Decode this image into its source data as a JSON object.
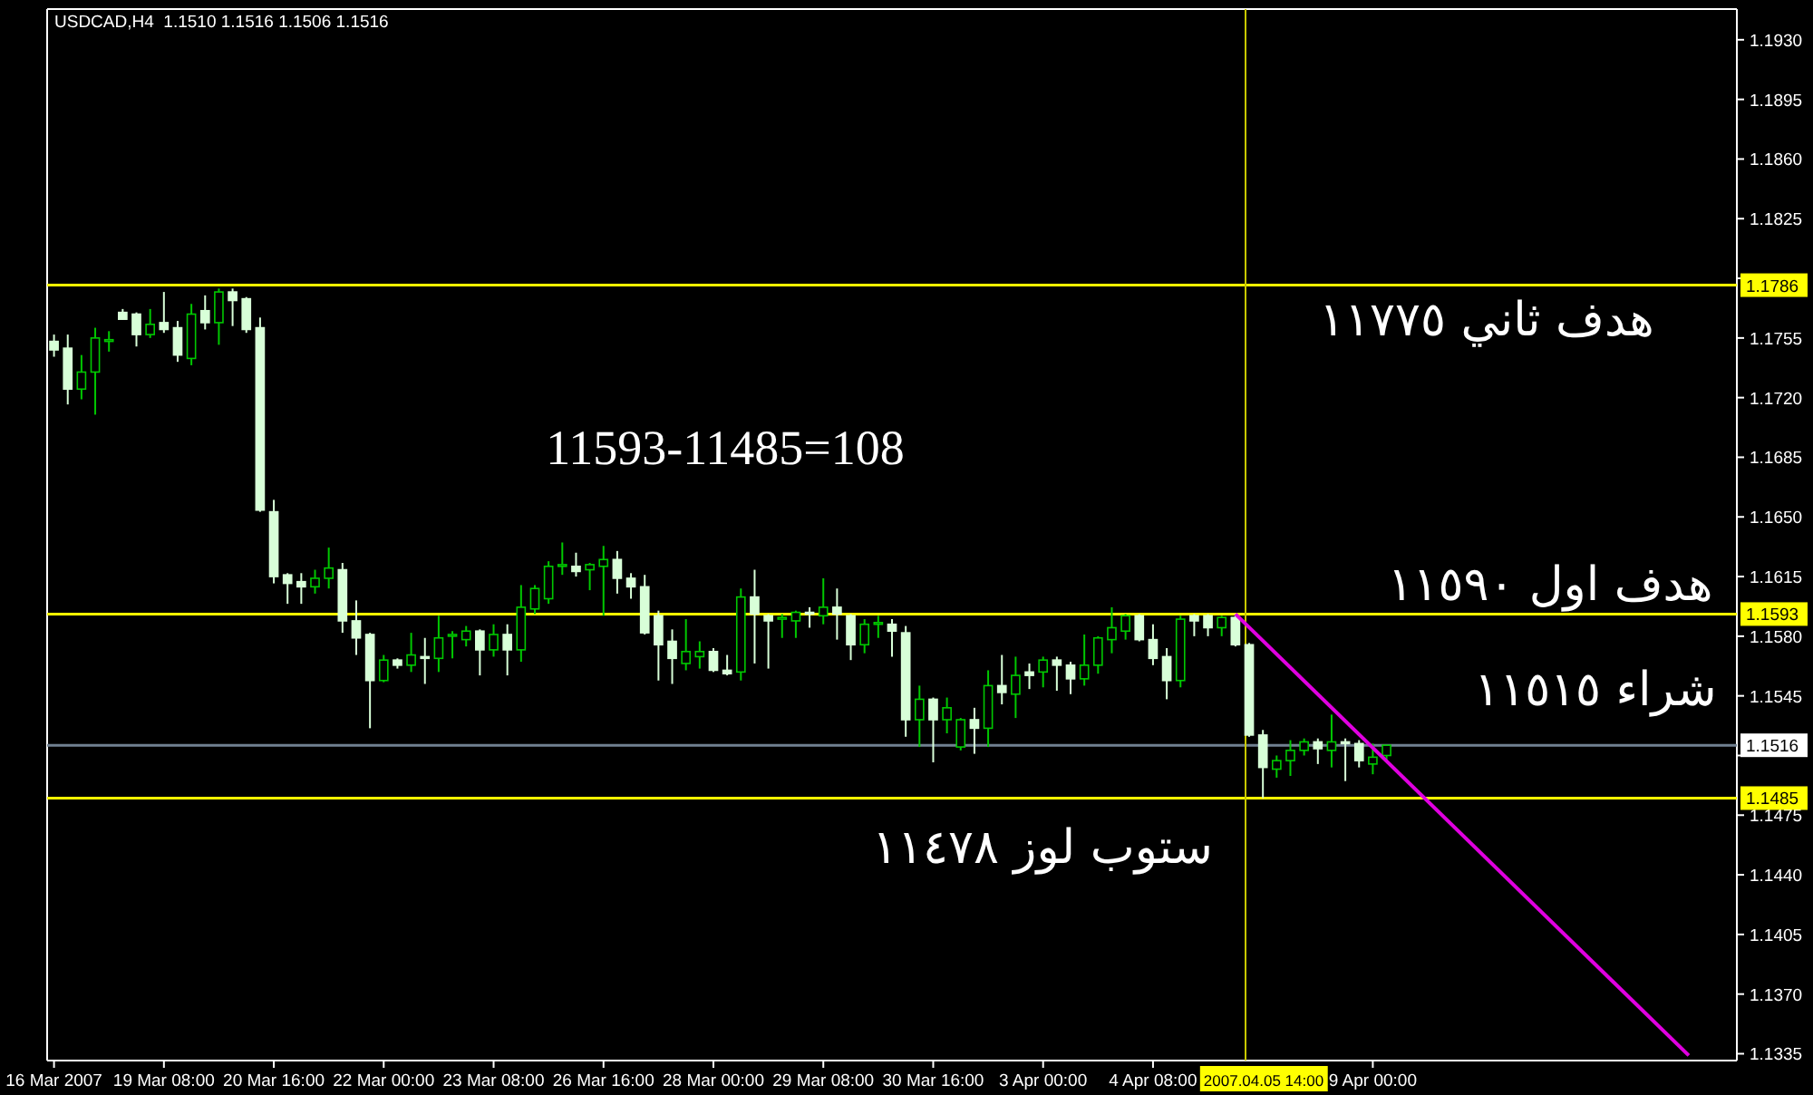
{
  "chart_data": {
    "type": "candlestick",
    "title": "USDCAD,H4  1.1510 1.1516 1.1506 1.1516",
    "categories": [
      "16 Mar 2007",
      null,
      null,
      null,
      null,
      null,
      null,
      null,
      "19 Mar 08:00",
      null,
      null,
      null,
      null,
      null,
      null,
      null,
      "20 Mar 16:00",
      null,
      null,
      null,
      null,
      null,
      null,
      null,
      "22 Mar 00:00",
      null,
      null,
      null,
      null,
      null,
      null,
      null,
      "23 Mar 08:00",
      null,
      null,
      null,
      null,
      null,
      null,
      null,
      "26 Mar 16:00",
      null,
      null,
      null,
      null,
      null,
      null,
      null,
      "28 Mar 00:00",
      null,
      null,
      null,
      null,
      null,
      null,
      null,
      "29 Mar 08:00",
      null,
      null,
      null,
      null,
      null,
      null,
      null,
      "30 Mar 16:00",
      null,
      null,
      null,
      null,
      null,
      null,
      null,
      "3 Apr 00:00",
      null,
      null,
      null,
      null,
      null,
      null,
      null,
      "4 Apr 08:00",
      null,
      null,
      null,
      null,
      null,
      null,
      null,
      null,
      null,
      null,
      null,
      null,
      null,
      null,
      null,
      "9 Apr 00:00",
      null,
      null,
      null,
      null,
      null,
      null,
      null,
      null,
      null,
      null,
      null,
      null,
      null,
      null,
      null,
      null,
      null,
      null,
      null,
      null,
      null,
      null,
      null,
      null,
      null,
      null
    ],
    "colors": [
      "#d8ffd8",
      "#d8ffd8",
      "#00c800",
      "#00c800",
      "#00c800",
      "#d8ffd8",
      "#d8ffd8",
      "#00c800",
      "#d8ffd8",
      "#d8ffd8",
      "#00c800",
      "#d8ffd8",
      "#00c800",
      "#d8ffd8",
      "#d8ffd8",
      "#d8ffd8",
      "#d8ffd8",
      "#d8ffd8",
      "#d8ffd8",
      "#00c800",
      "#00c800",
      "#d8ffd8",
      "#d8ffd8",
      "#d8ffd8",
      "#00c800",
      "#d8ffd8",
      "#00c800",
      "#d8ffd8",
      "#00c800",
      "#00c800",
      "#00c800",
      "#d8ffd8",
      "#00c800",
      "#d8ffd8",
      "#00c800",
      "#00c800",
      "#00c800",
      "#00c800",
      "#d8ffd8",
      "#00c800",
      "#00c800",
      "#d8ffd8",
      "#d8ffd8",
      "#d8ffd8",
      "#d8ffd8",
      "#d8ffd8",
      "#00c800",
      "#00c800",
      "#d8ffd8",
      "#d8ffd8",
      "#00c800",
      "#d8ffd8",
      "#d8ffd8",
      "#00c800",
      "#00c800",
      "#d8ffd8",
      "#00c800",
      "#d8ffd8",
      "#d8ffd8",
      "#00c800",
      "#00c800",
      "#d8ffd8",
      "#d8ffd8",
      "#00c800",
      "#d8ffd8",
      "#00c800",
      "#00c800",
      "#d8ffd8",
      "#00c800",
      "#d8ffd8",
      "#00c800",
      "#d8ffd8",
      "#00c800",
      "#d8ffd8",
      "#d8ffd8",
      "#00c800",
      "#00c800",
      "#00c800",
      "#00c800",
      "#d8ffd8",
      "#d8ffd8",
      "#d8ffd8",
      "#00c800",
      "#d8ffd8",
      "#d8ffd8",
      "#00c800",
      "#d8ffd8",
      "#d8ffd8",
      "#d8ffd8",
      "#00c800",
      "#00c800",
      "#00c800",
      "#d8ffd8",
      "#00c800",
      "#d8ffd8",
      "#d8ffd8",
      "#00c800",
      "#00c800",
      null,
      null,
      null,
      null,
      null,
      null,
      null,
      null,
      null,
      null,
      null,
      null,
      null,
      null,
      null,
      null,
      null,
      null,
      null,
      null,
      null,
      null,
      null,
      null,
      null
    ],
    "ohlc": [
      [
        1.1753,
        1.1757,
        1.1744,
        1.1748
      ],
      [
        1.1749,
        1.1757,
        1.1716,
        1.1725
      ],
      [
        1.1725,
        1.1745,
        1.1719,
        1.1735
      ],
      [
        1.1735,
        1.1761,
        1.171,
        1.1755
      ],
      [
        1.1753,
        1.1759,
        1.1747,
        1.1754
      ],
      [
        1.177,
        1.1772,
        1.1766,
        1.1766
      ],
      [
        1.1769,
        1.177,
        1.175,
        1.1757
      ],
      [
        1.1757,
        1.1772,
        1.1755,
        1.1763
      ],
      [
        1.1764,
        1.1782,
        1.1758,
        1.176
      ],
      [
        1.1761,
        1.1765,
        1.1741,
        1.1745
      ],
      [
        1.1743,
        1.1775,
        1.1739,
        1.1769
      ],
      [
        1.1771,
        1.178,
        1.176,
        1.1764
      ],
      [
        1.1764,
        1.1784,
        1.1751,
        1.1782
      ],
      [
        1.1782,
        1.1784,
        1.1762,
        1.1777
      ],
      [
        1.1778,
        1.1779,
        1.1758,
        1.176
      ],
      [
        1.1761,
        1.1767,
        1.1653,
        1.1654
      ],
      [
        1.1653,
        1.166,
        1.1611,
        1.1615
      ],
      [
        1.1616,
        1.1617,
        1.1599,
        1.1611
      ],
      [
        1.1612,
        1.1617,
        1.1599,
        1.1609
      ],
      [
        1.1609,
        1.1619,
        1.1605,
        1.1614
      ],
      [
        1.1614,
        1.1632,
        1.1608,
        1.162
      ],
      [
        1.1619,
        1.1623,
        1.1582,
        1.1589
      ],
      [
        1.1589,
        1.1601,
        1.1569,
        1.1579
      ],
      [
        1.1581,
        1.1582,
        1.1526,
        1.1554
      ],
      [
        1.1554,
        1.1569,
        1.1553,
        1.1566
      ],
      [
        1.1566,
        1.1567,
        1.1561,
        1.1563
      ],
      [
        1.1563,
        1.1582,
        1.1559,
        1.1569
      ],
      [
        1.1568,
        1.1579,
        1.1552,
        1.1567
      ],
      [
        1.1567,
        1.1592,
        1.1559,
        1.1579
      ],
      [
        1.158,
        1.1583,
        1.1567,
        1.1581
      ],
      [
        1.1578,
        1.1586,
        1.1574,
        1.1583
      ],
      [
        1.1583,
        1.1584,
        1.1557,
        1.1572
      ],
      [
        1.1572,
        1.1587,
        1.1568,
        1.1581
      ],
      [
        1.1581,
        1.1587,
        1.1557,
        1.1572
      ],
      [
        1.1572,
        1.161,
        1.1565,
        1.1597
      ],
      [
        1.1596,
        1.161,
        1.1593,
        1.1608
      ],
      [
        1.1602,
        1.1624,
        1.1599,
        1.1621
      ],
      [
        1.1621,
        1.1635,
        1.1616,
        1.1622
      ],
      [
        1.1621,
        1.1629,
        1.1615,
        1.1618
      ],
      [
        1.1619,
        1.1623,
        1.1607,
        1.1622
      ],
      [
        1.1621,
        1.1633,
        1.1592,
        1.1625
      ],
      [
        1.1625,
        1.163,
        1.1605,
        1.1614
      ],
      [
        1.1614,
        1.1617,
        1.1602,
        1.1609
      ],
      [
        1.1609,
        1.1616,
        1.1581,
        1.1582
      ],
      [
        1.1592,
        1.1595,
        1.1554,
        1.1575
      ],
      [
        1.1577,
        1.1584,
        1.1552,
        1.1567
      ],
      [
        1.1564,
        1.159,
        1.156,
        1.1571
      ],
      [
        1.1568,
        1.1577,
        1.1561,
        1.1571
      ],
      [
        1.1571,
        1.1573,
        1.1559,
        1.156
      ],
      [
        1.156,
        1.1569,
        1.1557,
        1.1558
      ],
      [
        1.1559,
        1.1608,
        1.1554,
        1.1603
      ],
      [
        1.1603,
        1.1619,
        1.1564,
        1.1593
      ],
      [
        1.1592,
        1.1593,
        1.1561,
        1.1589
      ],
      [
        1.159,
        1.1593,
        1.1579,
        1.1591
      ],
      [
        1.1589,
        1.1595,
        1.1579,
        1.1594
      ],
      [
        1.1594,
        1.1597,
        1.1585,
        1.1593
      ],
      [
        1.1592,
        1.1614,
        1.1587,
        1.1597
      ],
      [
        1.1597,
        1.1608,
        1.1578,
        1.1593
      ],
      [
        1.1592,
        1.1593,
        1.1566,
        1.1575
      ],
      [
        1.1575,
        1.159,
        1.157,
        1.1587
      ],
      [
        1.1587,
        1.1592,
        1.1579,
        1.1588
      ],
      [
        1.1587,
        1.159,
        1.1568,
        1.1583
      ],
      [
        1.1582,
        1.1586,
        1.1521,
        1.1531
      ],
      [
        1.1531,
        1.1551,
        1.1515,
        1.1543
      ],
      [
        1.1543,
        1.1544,
        1.1506,
        1.1531
      ],
      [
        1.1531,
        1.1544,
        1.1523,
        1.1538
      ],
      [
        1.1515,
        1.1532,
        1.1513,
        1.1531
      ],
      [
        1.1531,
        1.1538,
        1.1511,
        1.1526
      ],
      [
        1.1526,
        1.156,
        1.1515,
        1.1551
      ],
      [
        1.1551,
        1.1569,
        1.154,
        1.1547
      ],
      [
        1.1546,
        1.1568,
        1.1532,
        1.1557
      ],
      [
        1.1559,
        1.1564,
        1.1549,
        1.1557
      ],
      [
        1.1559,
        1.1568,
        1.155,
        1.1566
      ],
      [
        1.1566,
        1.1568,
        1.1548,
        1.1563
      ],
      [
        1.1563,
        1.1565,
        1.1546,
        1.1555
      ],
      [
        1.1555,
        1.1581,
        1.1551,
        1.1563
      ],
      [
        1.1563,
        1.158,
        1.1558,
        1.1579
      ],
      [
        1.1578,
        1.1597,
        1.157,
        1.1585
      ],
      [
        1.1583,
        1.1593,
        1.1578,
        1.1592
      ],
      [
        1.1592,
        1.1593,
        1.1577,
        1.1578
      ],
      [
        1.1578,
        1.1587,
        1.1563,
        1.1567
      ],
      [
        1.1568,
        1.1573,
        1.1543,
        1.1554
      ],
      [
        1.1554,
        1.1592,
        1.155,
        1.159
      ],
      [
        1.1592,
        1.1593,
        1.158,
        1.1589
      ],
      [
        1.1592,
        1.1593,
        1.158,
        1.1585
      ],
      [
        1.1585,
        1.1592,
        1.158,
        1.1591
      ],
      [
        1.1591,
        1.1593,
        1.1574,
        1.1575
      ],
      [
        1.1575,
        1.1576,
        1.1521,
        1.1522
      ],
      [
        1.1522,
        1.1525,
        1.1485,
        1.1503
      ],
      [
        1.1502,
        1.151,
        1.1497,
        1.1507
      ],
      [
        1.1507,
        1.1519,
        1.1498,
        1.1513
      ],
      [
        1.1513,
        1.152,
        1.151,
        1.1518
      ],
      [
        1.1518,
        1.152,
        1.1505,
        1.1514
      ],
      [
        1.1513,
        1.1534,
        1.1503,
        1.1518
      ],
      [
        1.1518,
        1.152,
        1.1495,
        1.1517
      ],
      [
        1.1517,
        1.1519,
        1.1503,
        1.1507
      ],
      [
        1.1505,
        1.1517,
        1.1499,
        1.1509
      ],
      [
        1.151,
        1.1516,
        1.1506,
        1.1516
      ],
      null,
      null,
      null,
      null,
      null,
      null,
      null,
      null,
      null,
      null,
      null,
      null,
      null,
      null,
      null,
      null,
      null,
      null,
      null,
      null,
      null,
      null,
      null,
      null,
      null
    ],
    "series": [
      {
        "type": "line",
        "color": "#e000e0",
        "values": [
          null,
          null,
          null,
          null,
          null,
          null,
          null,
          null,
          null,
          null,
          null,
          null,
          null,
          null,
          null,
          null,
          null,
          null,
          null,
          null,
          null,
          null,
          null,
          null,
          null,
          null,
          null,
          null,
          null,
          null,
          null,
          null,
          null,
          null,
          null,
          null,
          null,
          null,
          null,
          null,
          null,
          null,
          null,
          null,
          null,
          null,
          null,
          null,
          null,
          null,
          null,
          null,
          null,
          null,
          null,
          null,
          null,
          null,
          null,
          null,
          null,
          null,
          null,
          null,
          null,
          null,
          null,
          null,
          null,
          null,
          null,
          null,
          null,
          null,
          null,
          null,
          null,
          null,
          null,
          null,
          null,
          null,
          null,
          null,
          null,
          null,
          1.1593,
          null,
          null,
          null,
          null,
          null,
          null,
          null,
          null,
          null,
          null,
          null,
          null,
          null,
          null,
          null,
          null,
          null,
          null,
          null,
          null,
          null,
          null,
          null,
          null,
          null,
          null,
          null,
          null,
          null,
          null,
          null,
          null,
          1.1334,
          null,
          null,
          null
        ]
      }
    ],
    "ylim": [
      1.1331,
      1.1948
    ],
    "yticks": [
      1.1335,
      {
        "value": 1.137,
        "label": "1.1370"
      },
      1.1405,
      {
        "value": 1.144,
        "label": "1.1440"
      },
      1.1475,
      {
        "value": 1.151,
        "label": null
      },
      1.1545,
      {
        "value": 1.158,
        "label": "1.1580"
      },
      1.1615,
      {
        "value": 1.165,
        "label": "1.1650"
      },
      1.1685,
      {
        "value": 1.172,
        "label": "1.1720"
      },
      1.1755,
      {
        "value": 1.179,
        "label": null
      },
      1.1825,
      {
        "value": 1.186,
        "label": "1.1860"
      },
      1.1895,
      {
        "value": 1.193,
        "label": "1.1930"
      }
    ],
    "ref_lines": [
      {
        "axis": "y",
        "value": 1.1786,
        "label": "1.1786",
        "color": "#ffff00"
      },
      {
        "axis": "y",
        "value": 1.1593,
        "label": "1.1593",
        "color": "#ffff00"
      },
      {
        "axis": "y",
        "value": 1.1516,
        "label": "1.1516",
        "color": "#708090"
      },
      {
        "axis": "y",
        "value": 1.1485,
        "label": "1.1485",
        "color": "#ffff00"
      }
    ],
    "annotations": [
      "11593-11485=108",
      "هدف ثاني ١١٧٧٥",
      "هدف اول ١١٥٩٠",
      "شراء ١١٥١٥",
      "ستوب لوز ١١٤٧٨",
      "2007.04.05 14:00"
    ],
    "grid": false
  }
}
